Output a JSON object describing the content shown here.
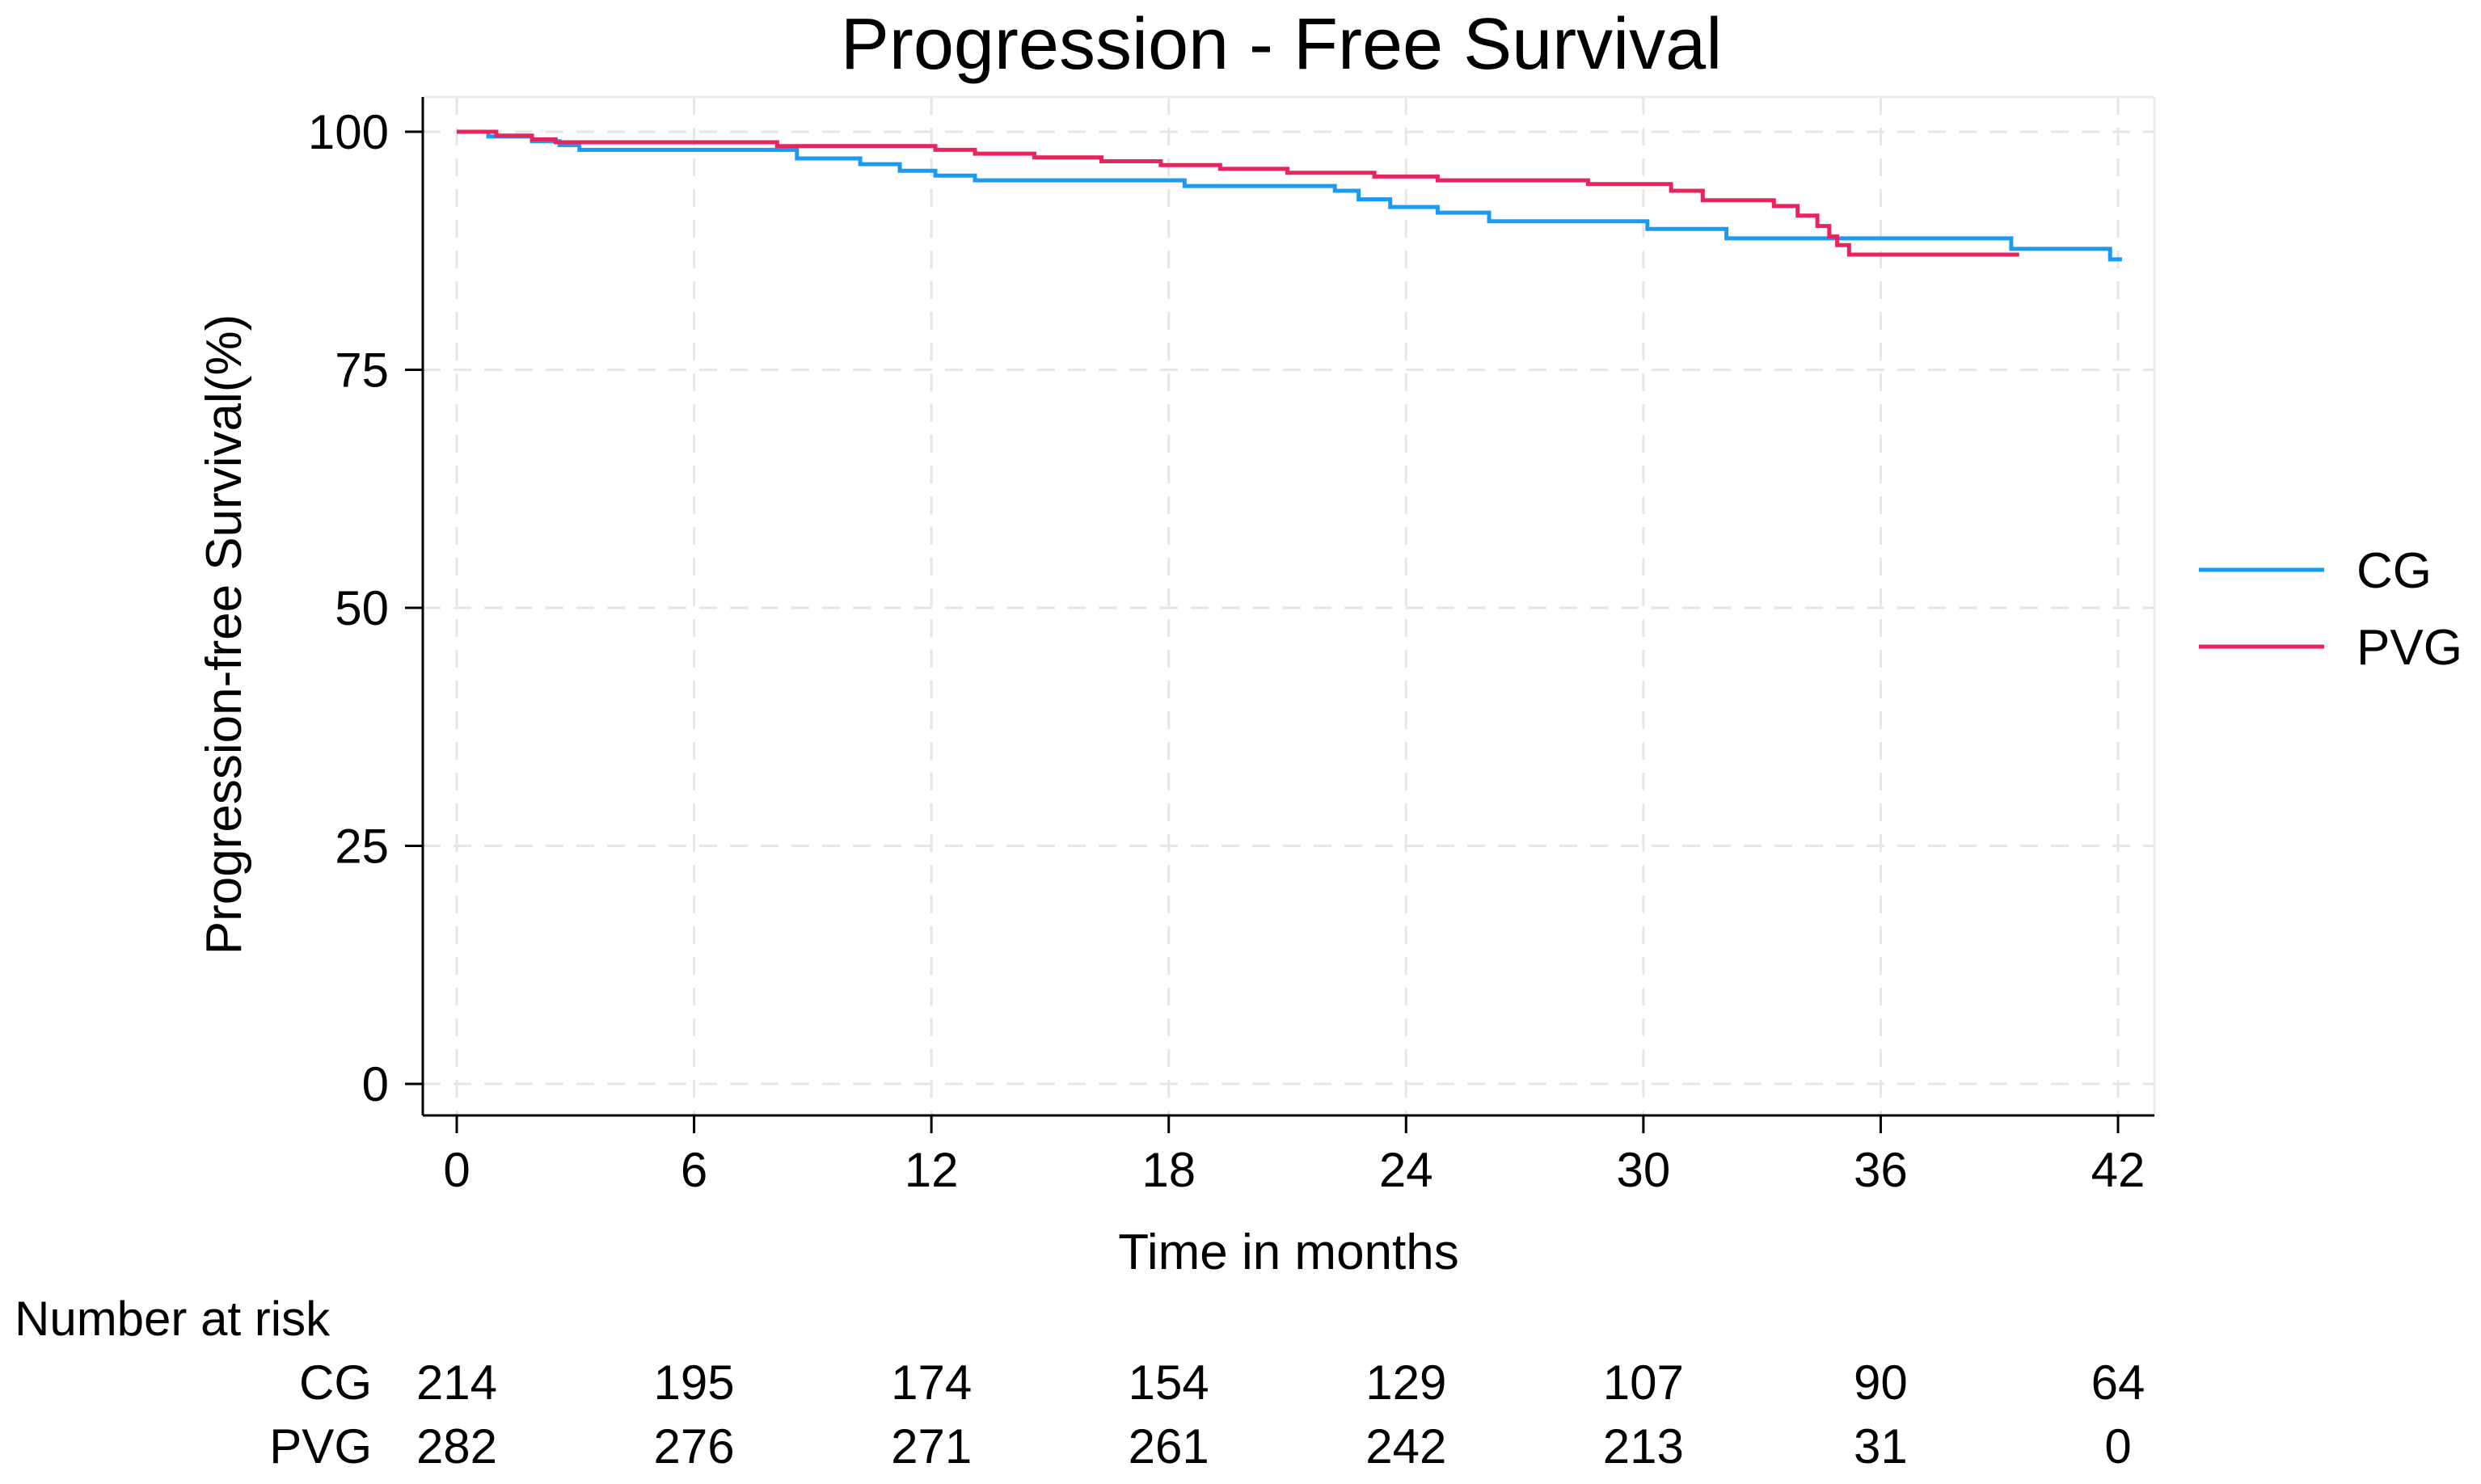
{
  "chart_data": {
    "type": "line",
    "step": true,
    "title": "Progression - Free Survival",
    "xlabel": "Time in months",
    "ylabel": "Progression-free Survival(%)",
    "xlim": [
      0,
      42
    ],
    "ylim": [
      0,
      100
    ],
    "xticks": [
      0,
      6,
      12,
      18,
      24,
      30,
      36,
      42
    ],
    "yticks": [
      0,
      25,
      50,
      75,
      100
    ],
    "grid": true,
    "legend_position": "right",
    "series": [
      {
        "name": "CG",
        "color": "#1a9bf0",
        "x": [
          0,
          0.8,
          1.9,
          2.6,
          3.1,
          8.6,
          10.2,
          11.2,
          12.1,
          13.1,
          18.4,
          22.2,
          22.8,
          23.6,
          24.8,
          26.1,
          30.1,
          32.1,
          39.3,
          41.8,
          42.1
        ],
        "y": [
          100,
          99.5,
          99.0,
          98.6,
          98.1,
          97.2,
          96.6,
          95.9,
          95.4,
          94.9,
          94.3,
          93.8,
          92.9,
          92.1,
          91.5,
          90.6,
          89.8,
          88.8,
          87.7,
          86.6,
          86.6
        ]
      },
      {
        "name": "PVG",
        "color": "#e8245f",
        "x": [
          0,
          1.0,
          1.9,
          2.5,
          8.1,
          12.1,
          13.1,
          14.6,
          16.3,
          17.8,
          19.3,
          21.0,
          23.2,
          24.8,
          28.6,
          30.7,
          31.5,
          33.3,
          33.9,
          34.4,
          34.7,
          34.9,
          35.2,
          39.5
        ],
        "y": [
          100,
          99.6,
          99.2,
          98.9,
          98.5,
          98.1,
          97.7,
          97.3,
          96.9,
          96.5,
          96.1,
          95.7,
          95.3,
          94.9,
          94.5,
          93.8,
          92.8,
          92.2,
          91.2,
          90.1,
          89.0,
          88.1,
          87.1,
          87.1
        ]
      }
    ],
    "number_at_risk": {
      "heading": "Number at risk",
      "times": [
        0,
        6,
        12,
        18,
        24,
        30,
        36,
        42
      ],
      "rows": [
        {
          "label": "CG",
          "values": [
            "214",
            "195",
            "174",
            "154",
            "129",
            "107",
            "90",
            "64"
          ]
        },
        {
          "label": "PVG",
          "values": [
            "282",
            "276",
            "271",
            "261",
            "242",
            "213",
            "31",
            "0"
          ]
        }
      ]
    }
  }
}
